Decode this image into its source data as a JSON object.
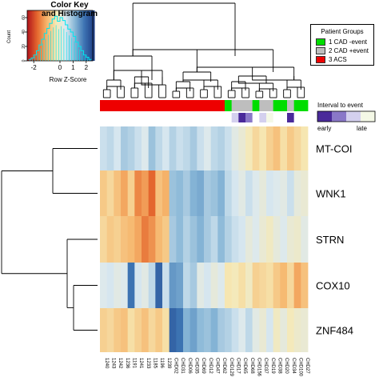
{
  "color_key": {
    "title": "Color Key\nand Histogram",
    "ylabel": "Count",
    "xlabel": "Row Z-Score",
    "xticks": [
      "-2",
      "0",
      "1",
      "2"
    ],
    "yticks": [
      "0",
      "20",
      "40",
      "60"
    ]
  },
  "legend_groups": {
    "title": "Patient Groups",
    "items": [
      {
        "label": "1 CAD -event",
        "color": "#00dd00"
      },
      {
        "label": "2 CAD +event",
        "color": "#bebebe"
      },
      {
        "label": "3 ACS",
        "color": "#ee0000"
      }
    ]
  },
  "interval_legend": {
    "title": "Interval to event",
    "low_label": "early",
    "high_label": "late",
    "colors": [
      "#4a2a9a",
      "#8a78c8",
      "#d4d0ee",
      "#f4f8e6"
    ]
  },
  "palette": [
    "#1f3f86",
    "#3d74b3",
    "#87b6d6",
    "#dbe9f1",
    "#f6e9b5",
    "#f6b56b",
    "#e5682e",
    "#b51a1d"
  ],
  "chart_data": {
    "type": "heatmap",
    "rows": [
      "MT-COI",
      "WNK1",
      "STRN",
      "COX10",
      "ZNF484"
    ],
    "columns": [
      "1240",
      "1243",
      "1242",
      "1236",
      "1191",
      "1241",
      "1233",
      "1185",
      "1196",
      "1239",
      "CHD02",
      "CHD31",
      "CHD06",
      "CHD35",
      "CHD69",
      "CHD12",
      "CHD47",
      "CHD62",
      "CHD129",
      "CHD17",
      "CHD65",
      "CHD68",
      "CHD156",
      "CHD37",
      "CHD19",
      "CHD38",
      "CHD20",
      "CHD34",
      "CHD100",
      "CHD27"
    ],
    "groups": [
      3,
      3,
      3,
      3,
      3,
      3,
      3,
      3,
      3,
      3,
      3,
      3,
      3,
      3,
      3,
      3,
      3,
      3,
      1,
      2,
      2,
      2,
      1,
      2,
      2,
      1,
      1,
      2,
      1,
      1
    ],
    "z_scores": [
      [
        0.5,
        0.6,
        0.4,
        0.8,
        0.7,
        0.5,
        0.3,
        0.9,
        0.6,
        0.4,
        0.7,
        0.5,
        0.6,
        0.8,
        0.5,
        0.3,
        0.6,
        0.7,
        0.5,
        0.2,
        0.0,
        -0.3,
        -0.6,
        -0.4,
        -0.7,
        -0.9,
        -0.5,
        -0.8,
        -0.6,
        -0.4
      ],
      [
        -0.8,
        -0.6,
        -0.9,
        -1.2,
        -0.7,
        -1.5,
        -1.3,
        -1.8,
        -0.9,
        -1.1,
        0.9,
        1.0,
        0.8,
        1.1,
        1.2,
        0.8,
        0.9,
        1.1,
        0.6,
        0.4,
        0.2,
        0.5,
        0.3,
        0.1,
        0.4,
        0.3,
        0.2,
        0.5,
        0.1,
        0.0
      ],
      [
        -0.6,
        -0.8,
        -0.7,
        -0.9,
        -1.0,
        -1.2,
        -1.6,
        -1.4,
        -1.0,
        -0.8,
        0.8,
        1.0,
        0.7,
        0.9,
        1.1,
        0.8,
        0.6,
        1.0,
        0.7,
        0.5,
        0.4,
        0.1,
        0.3,
        0.0,
        -0.2,
        0.1,
        0.3,
        0.0,
        -0.1,
        0.2
      ],
      [
        0.3,
        0.4,
        0.2,
        0.3,
        1.8,
        0.4,
        0.2,
        0.6,
        2.0,
        0.5,
        1.4,
        1.3,
        0.6,
        0.8,
        0.2,
        0.4,
        0.1,
        0.3,
        -0.4,
        -0.3,
        -0.5,
        -0.2,
        -0.7,
        -0.6,
        -0.5,
        -0.8,
        -1.0,
        -0.6,
        -1.2,
        -0.9
      ],
      [
        -0.7,
        -0.6,
        -0.8,
        -0.9,
        -0.5,
        -0.7,
        -0.9,
        -0.6,
        -0.8,
        -0.5,
        2.0,
        1.8,
        1.1,
        1.3,
        1.0,
        0.9,
        1.1,
        0.8,
        0.7,
        0.5,
        0.3,
        0.6,
        0.2,
        0.0,
        0.4,
        -0.2,
        0.1,
        -0.3,
        -0.1,
        0.0
      ]
    ],
    "interval_to_event": [
      null,
      null,
      null,
      null,
      null,
      null,
      null,
      null,
      null,
      null,
      null,
      null,
      null,
      null,
      null,
      null,
      null,
      null,
      null,
      0.7,
      0.1,
      0.3,
      null,
      0.6,
      0.9,
      null,
      null,
      0.2,
      null,
      null
    ],
    "z_range": [
      -2.5,
      2.5
    ],
    "histogram": {
      "bins": [
        -2.4,
        -2.2,
        -2.0,
        -1.8,
        -1.6,
        -1.4,
        -1.2,
        -1.0,
        -0.8,
        -0.6,
        -0.4,
        -0.2,
        0.0,
        0.2,
        0.4,
        0.6,
        0.8,
        1.0,
        1.2,
        1.4,
        1.6,
        1.8,
        2.0,
        2.2
      ],
      "counts": [
        2,
        4,
        8,
        14,
        22,
        30,
        38,
        45,
        52,
        58,
        62,
        55,
        60,
        56,
        50,
        44,
        40,
        34,
        26,
        20,
        14,
        8,
        5,
        2
      ],
      "ylim": [
        0,
        70
      ]
    },
    "legend_placement": "top-right"
  }
}
